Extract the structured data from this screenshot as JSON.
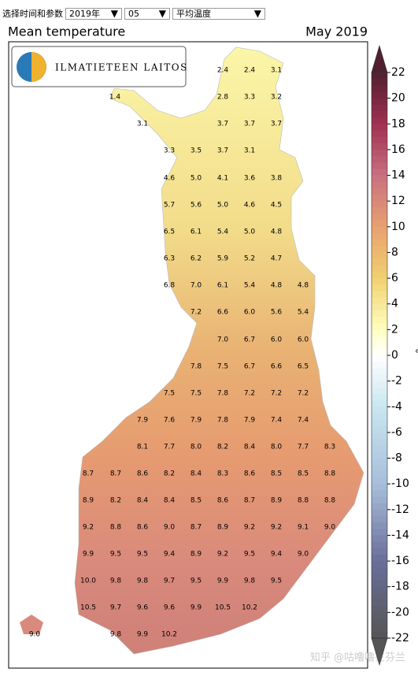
{
  "controls": {
    "label": "选择时间和参数",
    "year": "2019年",
    "month": "05",
    "parameter": "平均温度"
  },
  "map": {
    "title": "Mean temperature",
    "period": "May 2019",
    "logo": "ILMATIETEEN LAITOS",
    "rows": [
      [
        "2.4",
        "2.4",
        "3.1"
      ],
      [
        "1.4",
        "2.8",
        "3.3",
        "3.2"
      ],
      [
        "3.1",
        "3.7",
        "3.7",
        "3.7"
      ],
      [
        "3.3",
        "3.5",
        "3.7",
        "3.1"
      ],
      [
        "4.6",
        "5.0",
        "4.1",
        "3.6",
        "3.8"
      ],
      [
        "5.7",
        "5.6",
        "5.0",
        "4.6",
        "4.5"
      ],
      [
        "6.5",
        "6.1",
        "5.4",
        "5.0",
        "4.8"
      ],
      [
        "6.3",
        "6.2",
        "5.9",
        "5.2",
        "4.7"
      ],
      [
        "6.8",
        "7.0",
        "6.1",
        "5.4",
        "4.8",
        "4.8"
      ],
      [
        "7.2",
        "6.6",
        "6.0",
        "5.6",
        "5.4"
      ],
      [
        "7.0",
        "6.7",
        "6.0",
        "6.0"
      ],
      [
        "7.8",
        "7.5",
        "6.7",
        "6.6",
        "6.5"
      ],
      [
        "7.5",
        "7.5",
        "7.8",
        "7.2",
        "7.2",
        "7.2"
      ],
      [
        "7.9",
        "7.6",
        "7.9",
        "7.8",
        "7.9",
        "7.4",
        "7.4"
      ],
      [
        "8.1",
        "7.7",
        "8.0",
        "8.2",
        "8.4",
        "8.0",
        "7.7",
        "8.3"
      ],
      [
        "8.7",
        "8.7",
        "8.6",
        "8.2",
        "8.4",
        "8.3",
        "8.6",
        "8.5",
        "8.5",
        "8.8"
      ],
      [
        "8.9",
        "8.2",
        "8.4",
        "8.4",
        "8.5",
        "8.6",
        "8.7",
        "8.9",
        "8.8",
        "8.8"
      ],
      [
        "9.2",
        "8.8",
        "8.6",
        "9.0",
        "8.7",
        "8.9",
        "9.2",
        "9.2",
        "9.1",
        "9.0"
      ],
      [
        "9.9",
        "9.5",
        "9.5",
        "9.4",
        "8.9",
        "9.2",
        "9.5",
        "9.4",
        "9.0"
      ],
      [
        "10.0",
        "9.8",
        "9.8",
        "9.7",
        "9.5",
        "9.9",
        "9.8",
        "9.5"
      ],
      [
        "10.5",
        "9.7",
        "9.6",
        "9.6",
        "9.9",
        "10.5",
        "10.2"
      ],
      [
        "9.0",
        "9.8",
        "9.9",
        "10.2"
      ]
    ]
  },
  "colorbar": {
    "unit": "°",
    "ticks": [
      22,
      20,
      18,
      16,
      14,
      12,
      10,
      8,
      6,
      4,
      2,
      0,
      -2,
      -4,
      -6,
      -8,
      -10,
      -12,
      -14,
      -16,
      -18,
      -20,
      -22
    ]
  },
  "watermark": "知乎 @咕噜噜在芬兰"
}
